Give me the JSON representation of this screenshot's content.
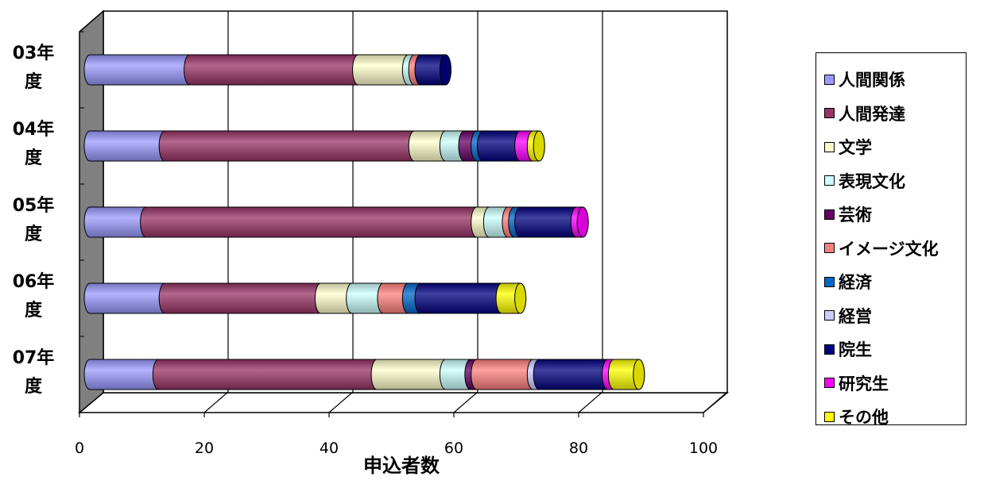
{
  "chart_data": {
    "type": "bar",
    "orientation": "horizontal",
    "stacked": true,
    "style": "3d-cylinder",
    "title": "",
    "xlabel": "申込者数",
    "ylabel": "",
    "xlim": [
      0,
      100
    ],
    "x_ticks": [
      "0",
      "20",
      "40",
      "60",
      "80",
      "100"
    ],
    "grid": true,
    "legend_position": "right",
    "categories": [
      [
        "03年",
        "度"
      ],
      [
        "04年",
        "度"
      ],
      [
        "05年",
        "度"
      ],
      [
        "06年",
        "度"
      ],
      [
        "07年",
        "度"
      ]
    ],
    "series": [
      {
        "name": "人間関係",
        "color": "#9999FF",
        "values": [
          16,
          12,
          9,
          12,
          11
        ]
      },
      {
        "name": "人間発達",
        "color": "#993366",
        "values": [
          27,
          40,
          53,
          25,
          35
        ]
      },
      {
        "name": "文学",
        "color": "#FFFFCC",
        "values": [
          8,
          5,
          2,
          5,
          11
        ]
      },
      {
        "name": "表現文化",
        "color": "#CCFFFF",
        "values": [
          1,
          3,
          3,
          5,
          4
        ]
      },
      {
        "name": "芸術",
        "color": "#660066",
        "values": [
          0,
          2,
          0,
          0,
          1
        ]
      },
      {
        "name": "イメージ文化",
        "color": "#FF8080",
        "values": [
          1,
          0,
          1,
          4,
          9
        ]
      },
      {
        "name": "経済",
        "color": "#0066CC",
        "values": [
          0,
          1,
          1,
          2,
          0
        ]
      },
      {
        "name": "経営",
        "color": "#CCCCFF",
        "values": [
          0,
          0,
          0,
          0,
          1
        ]
      },
      {
        "name": "院生",
        "color": "#000080",
        "values": [
          4,
          6,
          9,
          13,
          11
        ]
      },
      {
        "name": "研究生",
        "color": "#FF00FF",
        "values": [
          0,
          2,
          1,
          0,
          1
        ]
      },
      {
        "name": "その他",
        "color": "#FFFF00",
        "values": [
          0,
          1,
          0,
          3,
          4
        ]
      }
    ]
  }
}
